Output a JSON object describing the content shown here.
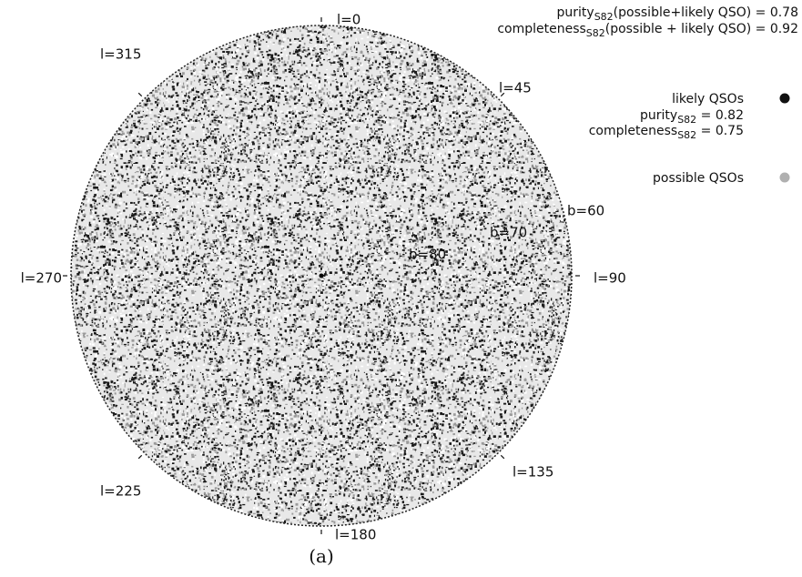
{
  "chart_data": {
    "type": "sky-map",
    "caption": "(a)",
    "longitude_labels": [
      "l=0",
      "l=45",
      "l=90",
      "l=135",
      "l=180",
      "l=225",
      "l=270",
      "l=315"
    ],
    "latitude_labels": [
      "b=60",
      "b=70",
      "b=80"
    ],
    "summary": [
      {
        "prefix": "purity",
        "sub": "S82",
        "suffix": "(possible+likely QSO) = 0.78"
      },
      {
        "prefix": "completeness",
        "sub": "S82",
        "suffix": "(possible + likely QSO) = 0.92"
      }
    ],
    "legend": [
      {
        "name": "likely QSOs",
        "color": "#111111",
        "notes": [
          {
            "prefix": "purity",
            "sub": "S82",
            "suffix": " = 0.82"
          },
          {
            "prefix": "completeness",
            "sub": "S82",
            "suffix": " = 0.75"
          }
        ]
      },
      {
        "name": "possible QSOs",
        "color": "#b0b0b0",
        "notes": []
      }
    ]
  }
}
